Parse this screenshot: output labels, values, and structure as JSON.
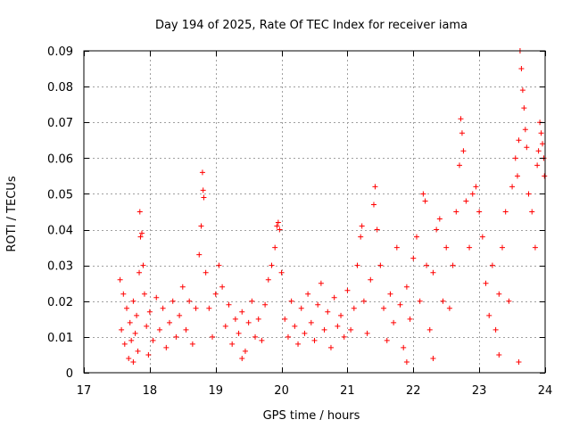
{
  "chart_data": {
    "type": "scatter",
    "title": "Day 194 of 2025, Rate Of TEC Index for receiver iama",
    "xlabel": "GPS time / hours",
    "ylabel": "ROTI / TECUs",
    "xlim": [
      17,
      24
    ],
    "ylim": [
      0,
      0.09
    ],
    "xticks": [
      17,
      18,
      19,
      20,
      21,
      22,
      23,
      24
    ],
    "yticks": [
      0,
      0.01,
      0.02,
      0.03,
      0.04,
      0.05,
      0.06,
      0.07,
      0.08,
      0.09
    ],
    "xtick_labels": [
      "17",
      "18",
      "19",
      "20",
      "21",
      "22",
      "23",
      "24"
    ],
    "ytick_labels": [
      "0",
      "0.01",
      "0.02",
      "0.03",
      "0.04",
      "0.05",
      "0.06",
      "0.07",
      "0.08",
      "0.09"
    ],
    "grid": true,
    "marker": "+",
    "color": "#ff0000",
    "series": [
      {
        "name": "iama",
        "points": [
          [
            17.55,
            0.026
          ],
          [
            17.57,
            0.012
          ],
          [
            17.6,
            0.022
          ],
          [
            17.62,
            0.008
          ],
          [
            17.65,
            0.018
          ],
          [
            17.68,
            0.004
          ],
          [
            17.7,
            0.014
          ],
          [
            17.72,
            0.009
          ],
          [
            17.75,
            0.02
          ],
          [
            17.78,
            0.011
          ],
          [
            17.8,
            0.016
          ],
          [
            17.82,
            0.006
          ],
          [
            17.84,
            0.028
          ],
          [
            17.85,
            0.045
          ],
          [
            17.86,
            0.038
          ],
          [
            17.88,
            0.039
          ],
          [
            17.9,
            0.03
          ],
          [
            17.92,
            0.022
          ],
          [
            17.95,
            0.013
          ],
          [
            17.98,
            0.005
          ],
          [
            18.0,
            0.017
          ],
          [
            18.05,
            0.009
          ],
          [
            18.1,
            0.021
          ],
          [
            18.15,
            0.012
          ],
          [
            18.2,
            0.018
          ],
          [
            18.25,
            0.007
          ],
          [
            18.3,
            0.014
          ],
          [
            18.35,
            0.02
          ],
          [
            18.4,
            0.01
          ],
          [
            18.45,
            0.016
          ],
          [
            18.5,
            0.024
          ],
          [
            18.55,
            0.012
          ],
          [
            18.6,
            0.02
          ],
          [
            18.65,
            0.008
          ],
          [
            18.7,
            0.018
          ],
          [
            18.75,
            0.033
          ],
          [
            18.78,
            0.041
          ],
          [
            18.8,
            0.056
          ],
          [
            18.81,
            0.051
          ],
          [
            18.82,
            0.049
          ],
          [
            18.85,
            0.028
          ],
          [
            18.9,
            0.018
          ],
          [
            18.95,
            0.01
          ],
          [
            19.0,
            0.022
          ],
          [
            19.05,
            0.03
          ],
          [
            19.1,
            0.024
          ],
          [
            19.15,
            0.013
          ],
          [
            19.2,
            0.019
          ],
          [
            19.25,
            0.008
          ],
          [
            19.3,
            0.015
          ],
          [
            19.35,
            0.011
          ],
          [
            19.4,
            0.017
          ],
          [
            19.45,
            0.006
          ],
          [
            19.5,
            0.014
          ],
          [
            19.55,
            0.02
          ],
          [
            19.6,
            0.01
          ],
          [
            19.65,
            0.015
          ],
          [
            19.7,
            0.009
          ],
          [
            19.75,
            0.019
          ],
          [
            19.8,
            0.026
          ],
          [
            19.85,
            0.03
          ],
          [
            19.9,
            0.035
          ],
          [
            19.93,
            0.041
          ],
          [
            19.95,
            0.042
          ],
          [
            19.97,
            0.04
          ],
          [
            20.0,
            0.028
          ],
          [
            20.05,
            0.015
          ],
          [
            20.1,
            0.01
          ],
          [
            20.15,
            0.02
          ],
          [
            20.2,
            0.013
          ],
          [
            20.25,
            0.008
          ],
          [
            20.3,
            0.018
          ],
          [
            20.35,
            0.011
          ],
          [
            20.4,
            0.022
          ],
          [
            20.45,
            0.014
          ],
          [
            20.5,
            0.009
          ],
          [
            20.55,
            0.019
          ],
          [
            20.6,
            0.025
          ],
          [
            20.65,
            0.012
          ],
          [
            20.7,
            0.017
          ],
          [
            20.75,
            0.007
          ],
          [
            20.8,
            0.021
          ],
          [
            20.85,
            0.013
          ],
          [
            20.9,
            0.016
          ],
          [
            20.95,
            0.01
          ],
          [
            21.0,
            0.023
          ],
          [
            21.05,
            0.012
          ],
          [
            21.1,
            0.018
          ],
          [
            21.15,
            0.03
          ],
          [
            21.2,
            0.038
          ],
          [
            21.22,
            0.041
          ],
          [
            21.25,
            0.02
          ],
          [
            21.3,
            0.011
          ],
          [
            21.35,
            0.026
          ],
          [
            21.4,
            0.047
          ],
          [
            21.42,
            0.052
          ],
          [
            21.45,
            0.04
          ],
          [
            21.5,
            0.03
          ],
          [
            21.55,
            0.018
          ],
          [
            21.6,
            0.009
          ],
          [
            21.65,
            0.022
          ],
          [
            21.7,
            0.014
          ],
          [
            21.75,
            0.035
          ],
          [
            21.8,
            0.019
          ],
          [
            21.85,
            0.007
          ],
          [
            21.9,
            0.024
          ],
          [
            21.95,
            0.015
          ],
          [
            22.0,
            0.032
          ],
          [
            22.05,
            0.038
          ],
          [
            22.1,
            0.02
          ],
          [
            22.15,
            0.05
          ],
          [
            22.18,
            0.048
          ],
          [
            22.2,
            0.03
          ],
          [
            22.25,
            0.012
          ],
          [
            22.3,
            0.028
          ],
          [
            22.35,
            0.04
          ],
          [
            22.4,
            0.043
          ],
          [
            22.45,
            0.02
          ],
          [
            22.5,
            0.035
          ],
          [
            22.55,
            0.018
          ],
          [
            22.6,
            0.03
          ],
          [
            22.65,
            0.045
          ],
          [
            22.7,
            0.058
          ],
          [
            22.72,
            0.071
          ],
          [
            22.74,
            0.067
          ],
          [
            22.76,
            0.062
          ],
          [
            22.8,
            0.048
          ],
          [
            22.85,
            0.035
          ],
          [
            22.9,
            0.05
          ],
          [
            22.95,
            0.052
          ],
          [
            23.0,
            0.045
          ],
          [
            23.05,
            0.038
          ],
          [
            23.1,
            0.025
          ],
          [
            23.15,
            0.016
          ],
          [
            23.2,
            0.03
          ],
          [
            23.25,
            0.012
          ],
          [
            23.3,
            0.022
          ],
          [
            23.35,
            0.035
          ],
          [
            23.4,
            0.045
          ],
          [
            23.45,
            0.02
          ],
          [
            23.5,
            0.052
          ],
          [
            23.55,
            0.06
          ],
          [
            23.58,
            0.055
          ],
          [
            23.6,
            0.065
          ],
          [
            23.62,
            0.09
          ],
          [
            23.64,
            0.085
          ],
          [
            23.66,
            0.079
          ],
          [
            23.68,
            0.074
          ],
          [
            23.7,
            0.068
          ],
          [
            23.72,
            0.063
          ],
          [
            23.75,
            0.05
          ],
          [
            23.8,
            0.045
          ],
          [
            23.85,
            0.035
          ],
          [
            23.88,
            0.058
          ],
          [
            23.9,
            0.062
          ],
          [
            23.92,
            0.07
          ],
          [
            23.94,
            0.067
          ],
          [
            23.96,
            0.064
          ],
          [
            23.98,
            0.06
          ],
          [
            23.99,
            0.055
          ],
          [
            23.6,
            0.003
          ],
          [
            23.3,
            0.005
          ],
          [
            22.3,
            0.004
          ],
          [
            21.9,
            0.003
          ],
          [
            19.4,
            0.004
          ],
          [
            17.75,
            0.003
          ]
        ]
      }
    ]
  }
}
